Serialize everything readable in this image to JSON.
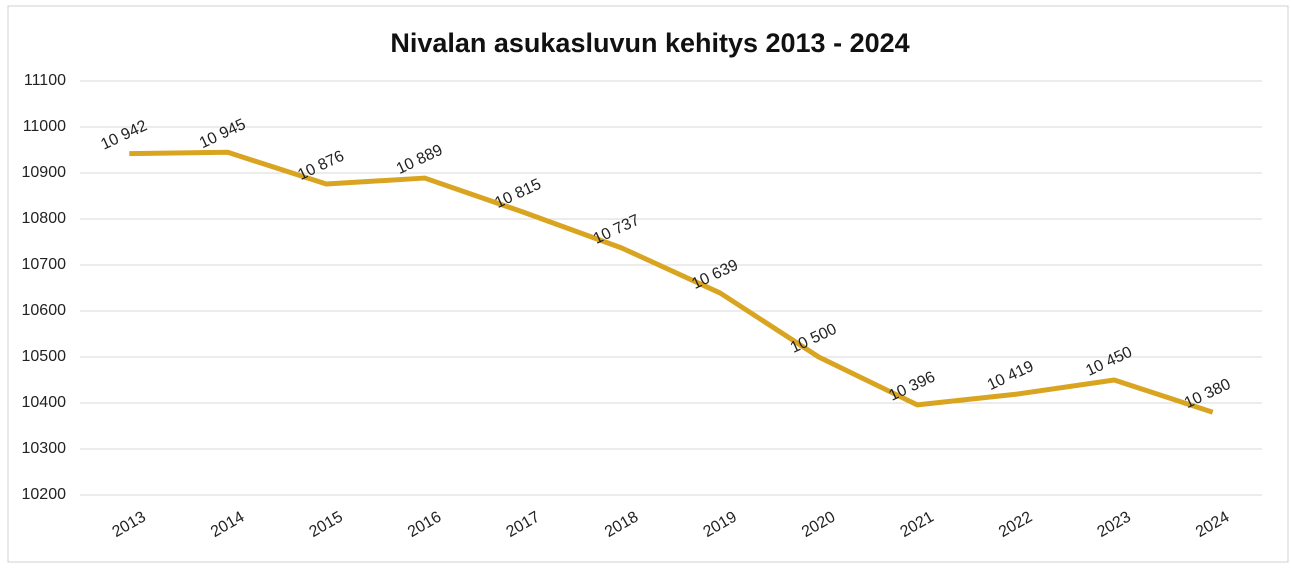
{
  "chart_data": {
    "type": "line",
    "title": "Nivalan asukasluvun kehitys 2013 - 2024",
    "categories": [
      "2013",
      "2014",
      "2015",
      "2016",
      "2017",
      "2018",
      "2019",
      "2020",
      "2021",
      "2022",
      "2023",
      "2024"
    ],
    "values": [
      10942,
      10945,
      10876,
      10889,
      10815,
      10737,
      10639,
      10500,
      10396,
      10419,
      10450,
      10380
    ],
    "value_labels": [
      "10 942",
      "10 945",
      "10 876",
      "10 889",
      "10 815",
      "10 737",
      "10 639",
      "10 500",
      "10 396",
      "10 419",
      "10 450",
      "10 380"
    ],
    "color": "#d9a521",
    "ylim": [
      10200,
      11100
    ],
    "yticks": [
      10200,
      10300,
      10400,
      10500,
      10600,
      10700,
      10800,
      10900,
      11000,
      11100
    ],
    "grid": true
  }
}
